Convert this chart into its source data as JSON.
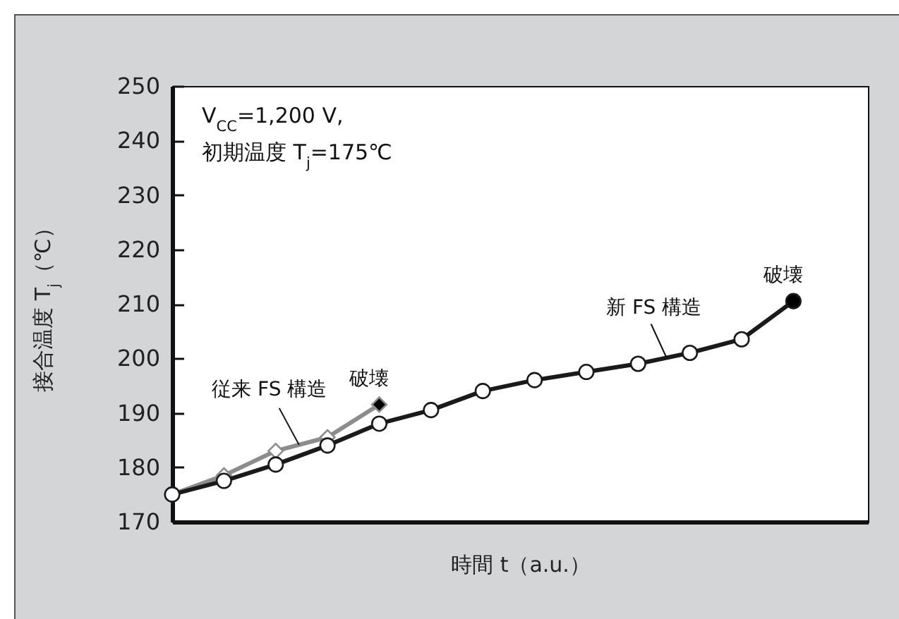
{
  "chart_data": {
    "type": "line",
    "xlabel": "時間 t（a.u.）",
    "ylabel": "接合温度 T$_{j}$（℃）",
    "categories": [
      null,
      null,
      null,
      null,
      null,
      null,
      null,
      null,
      null,
      null,
      null,
      null,
      null
    ],
    "series": [
      {
        "name": "従来 FS 構造",
        "color": "#8c8c8c",
        "marker": "diamond",
        "values": [
          175,
          178.5,
          183,
          185.5,
          191.5,
          null,
          null,
          null,
          null,
          null,
          null,
          null,
          null
        ],
        "colors": [
          "#ffffff",
          "#ffffff",
          "#ffffff",
          "#ffffff",
          "#000000",
          null,
          null,
          null,
          null,
          null,
          null,
          null,
          null
        ],
        "value_labels": [
          null,
          null,
          null,
          null,
          "破壊",
          null,
          null,
          null,
          null,
          null,
          null,
          null,
          null
        ]
      },
      {
        "name": "新 FS 構造",
        "color": "#1a1a1a",
        "marker": "circle",
        "values": [
          175,
          177.5,
          180.5,
          184,
          188,
          190.5,
          194,
          196,
          197.5,
          199,
          201,
          203.5,
          210.5
        ],
        "colors": [
          "#ffffff",
          "#ffffff",
          "#ffffff",
          "#ffffff",
          "#ffffff",
          "#ffffff",
          "#ffffff",
          "#ffffff",
          "#ffffff",
          "#ffffff",
          "#ffffff",
          "#ffffff",
          "#000000"
        ],
        "value_labels": [
          null,
          null,
          null,
          null,
          null,
          null,
          null,
          null,
          null,
          null,
          null,
          null,
          "破壊"
        ]
      }
    ],
    "ylim": [
      170,
      250
    ],
    "yticks": [
      170,
      180,
      190,
      200,
      210,
      220,
      230,
      240,
      250
    ],
    "annotations": [
      "V$_{CC}$=1,200 V,",
      "初期温度 T$_{j}$=175℃"
    ]
  }
}
